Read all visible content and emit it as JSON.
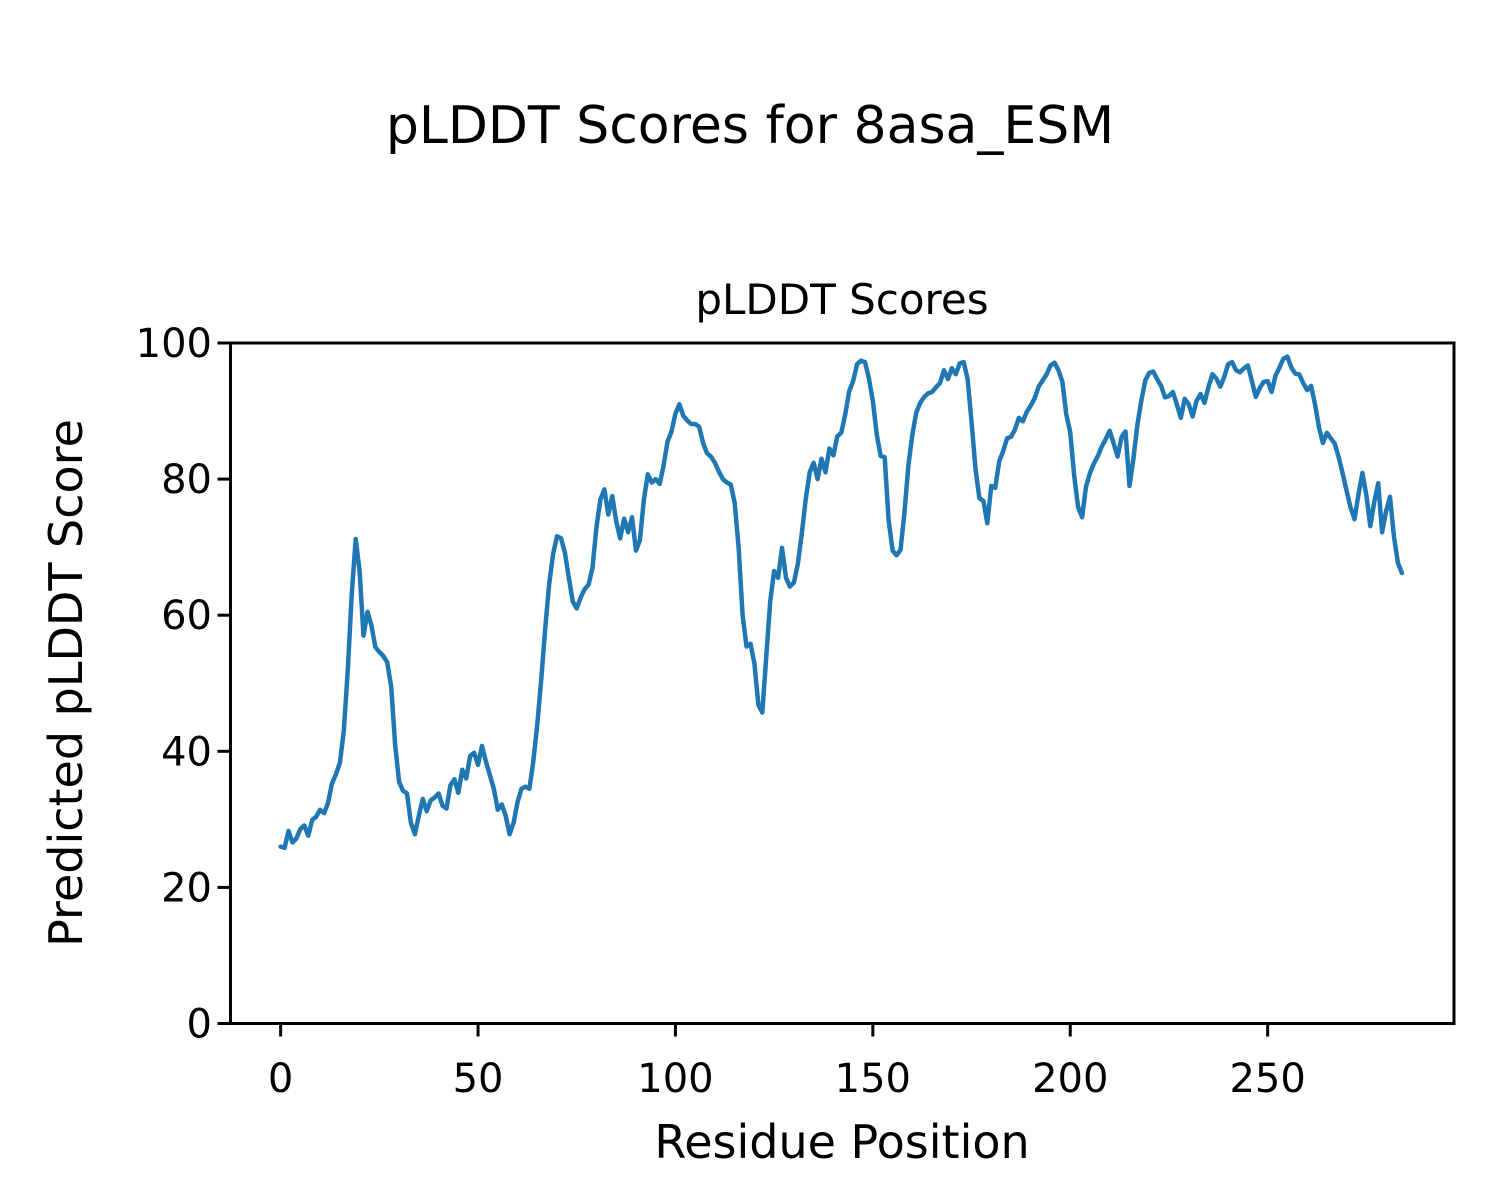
{
  "figure": {
    "suptitle": "pLDDT Scores for 8asa_ESM",
    "axes_title": "pLDDT Scores",
    "xlabel": "Residue Position",
    "ylabel": "Predicted pLDDT Score"
  },
  "colors": {
    "line": "#1f77b4",
    "axis": "#000000",
    "text": "#000000",
    "background": "#ffffff"
  },
  "chart_data": {
    "type": "line",
    "suptitle": "pLDDT Scores for 8asa_ESM",
    "title": "pLDDT Scores",
    "xlabel": "Residue Position",
    "ylabel": "Predicted pLDDT Score",
    "grid": false,
    "legend": "none",
    "xticks": [
      0,
      50,
      100,
      150,
      200,
      250
    ],
    "yticks": [
      0,
      20,
      40,
      60,
      80,
      100
    ],
    "ylim": [
      0,
      100
    ],
    "xlim": [
      -12.7,
      297.2
    ],
    "x_start": 0,
    "x_step": 1,
    "series": [
      {
        "name": "pLDDT",
        "color": "#1f77b4",
        "values": [
          26.0,
          25.8,
          28.3,
          26.6,
          27.2,
          28.6,
          29.1,
          27.6,
          29.9,
          30.4,
          31.4,
          30.9,
          32.4,
          35.3,
          36.6,
          38.3,
          43.0,
          52.0,
          63.0,
          71.2,
          66.5,
          57.0,
          60.5,
          58.5,
          55.3,
          54.6,
          54.0,
          53.1,
          49.5,
          41.0,
          35.5,
          34.2,
          33.8,
          29.5,
          27.8,
          30.5,
          33.0,
          31.2,
          32.8,
          33.2,
          33.8,
          32.0,
          31.6,
          35.0,
          35.9,
          33.9,
          37.3,
          36.0,
          39.3,
          39.8,
          38.0,
          40.8,
          38.5,
          36.5,
          34.5,
          31.4,
          32.2,
          30.5,
          27.8,
          29.5,
          32.5,
          34.5,
          34.8,
          34.5,
          38.5,
          44.0,
          50.5,
          58.0,
          64.5,
          69.0,
          71.6,
          71.3,
          69.2,
          65.5,
          62.0,
          61.0,
          62.6,
          63.8,
          64.5,
          67.0,
          73.0,
          77.0,
          78.5,
          74.8,
          77.5,
          73.8,
          71.3,
          74.2,
          72.2,
          74.4,
          69.5,
          71.0,
          77.0,
          80.7,
          79.5,
          80.0,
          79.3,
          82.0,
          85.5,
          87.0,
          89.6,
          91.0,
          89.3,
          88.6,
          88.1,
          88.1,
          87.7,
          85.3,
          83.8,
          83.3,
          82.4,
          81.1,
          80.0,
          79.5,
          79.2,
          76.5,
          70.0,
          60.0,
          55.4,
          55.8,
          52.9,
          46.8,
          45.7,
          54.0,
          62.0,
          66.5,
          65.5,
          69.9,
          65.5,
          64.2,
          64.8,
          67.5,
          72.0,
          77.0,
          81.0,
          82.4,
          80.0,
          83.0,
          81.0,
          84.5,
          83.5,
          86.3,
          86.8,
          89.5,
          92.9,
          94.4,
          96.9,
          97.4,
          97.2,
          94.8,
          91.5,
          86.5,
          83.4,
          83.2,
          74.0,
          69.5,
          68.8,
          69.6,
          75.0,
          82.0,
          86.5,
          89.8,
          91.2,
          92.1,
          92.6,
          92.8,
          93.5,
          94.1,
          96.0,
          94.7,
          96.3,
          95.4,
          97.0,
          97.2,
          94.7,
          88.5,
          81.5,
          77.2,
          76.8,
          73.5,
          79.0,
          78.7,
          82.6,
          84.1,
          86.0,
          86.2,
          87.3,
          89.0,
          88.5,
          89.9,
          90.8,
          91.9,
          93.6,
          94.5,
          95.4,
          96.7,
          97.1,
          96.0,
          94.3,
          89.5,
          86.9,
          80.5,
          75.9,
          74.4,
          78.9,
          80.9,
          82.3,
          83.4,
          84.8,
          85.9,
          87.1,
          85.2,
          83.3,
          86.2,
          87.0,
          79.0,
          83.0,
          88.0,
          91.5,
          94.5,
          95.6,
          95.8,
          94.7,
          93.7,
          92.0,
          92.2,
          92.8,
          91.0,
          89.0,
          91.8,
          91.0,
          89.2,
          91.5,
          92.5,
          91.2,
          93.5,
          95.4,
          94.8,
          93.6,
          95.0,
          96.9,
          97.2,
          96.0,
          95.7,
          96.3,
          96.7,
          94.4,
          92.1,
          93.4,
          94.3,
          94.4,
          92.8,
          95.2,
          96.4,
          97.7,
          98.0,
          96.4,
          95.5,
          95.4,
          94.1,
          93.1,
          93.7,
          91.0,
          87.6,
          85.3,
          86.8,
          86.0,
          85.2,
          83.2,
          80.8,
          78.3,
          75.8,
          74.1,
          77.8,
          80.9,
          77.6,
          73.1,
          76.6,
          79.4,
          72.2,
          75.3,
          77.4,
          71.5,
          67.7,
          66.2
        ]
      }
    ]
  }
}
